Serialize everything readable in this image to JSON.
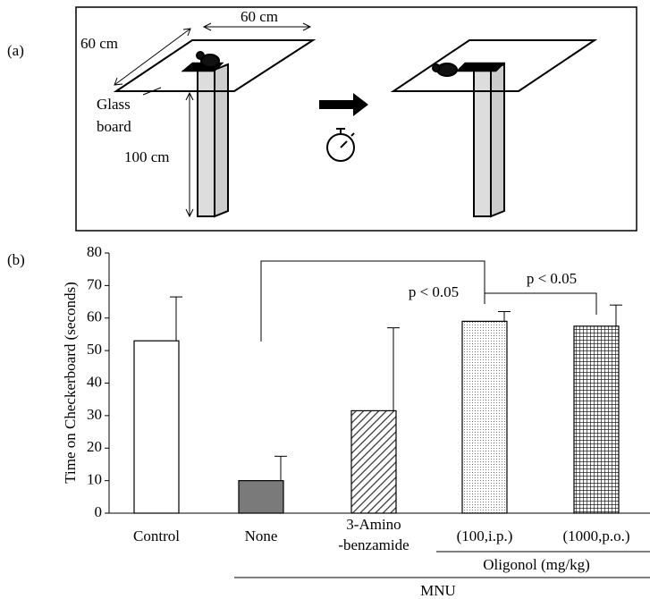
{
  "diagram": {
    "label": "(a)",
    "top_width": "60 cm",
    "side_width": "60 cm",
    "board_label": [
      "Glass",
      "board"
    ],
    "height": "100 cm"
  },
  "chart_data": {
    "type": "bar",
    "panel_label": "(b)",
    "y_label": "Time on Checkerboard (seconds)",
    "categories": [
      "Control",
      "None",
      "3-Amino\n-benzamide",
      "(100,i.p.)",
      "(1000,p.o.)"
    ],
    "values": [
      53,
      10,
      31.5,
      59,
      57.5
    ],
    "errors": [
      13.5,
      7.5,
      25.5,
      3,
      6.5
    ],
    "fills": [
      "white",
      "gray",
      "diagonal",
      "dots",
      "grid"
    ],
    "ylim": [
      0,
      80
    ],
    "yticks": [
      0,
      10,
      20,
      30,
      40,
      50,
      60,
      70,
      80
    ],
    "group_labels": [
      "Oligonol (mg/kg)",
      "MNU"
    ],
    "annotations": [
      "p < 0.05",
      "p < 0.05"
    ]
  }
}
